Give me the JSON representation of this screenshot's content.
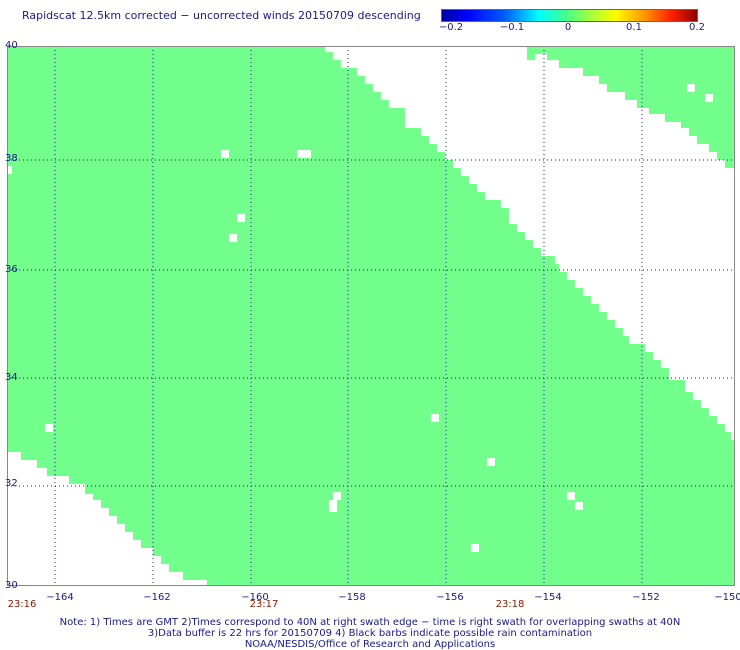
{
  "title": "Rapidscat 12.5km corrected − uncorrected winds 20150709 descending",
  "colorbar": {
    "labels": [
      "−0.2",
      "−0.1",
      "0",
      "0.1",
      "0.2"
    ],
    "min": -0.2,
    "max": 0.2
  },
  "axes": {
    "lat_labels": [
      "40",
      "38",
      "36",
      "34",
      "32",
      "30"
    ],
    "lon_labels": [
      "−164",
      "−162",
      "−160",
      "−158",
      "−156",
      "−154",
      "−152",
      "−150"
    ],
    "time_labels": [
      "23:16",
      "23:17",
      "23:18"
    ],
    "lat_range": [
      30,
      40
    ],
    "lon_range": [
      -165,
      -150
    ]
  },
  "swath_color": "#73ff8c",
  "grid_color": "#1a1a8c",
  "notes": {
    "line1": "Note: 1) Times are GMT 2)Times correspond to 40N at right swath edge − time is right swath for overlapping swaths at 40N",
    "line2": "3)Data buffer is 22 hrs for 20150709 4) Black barbs indicate possible rain contamination",
    "line3": "NOAA/NESDIS/Office of Research and Applications"
  }
}
